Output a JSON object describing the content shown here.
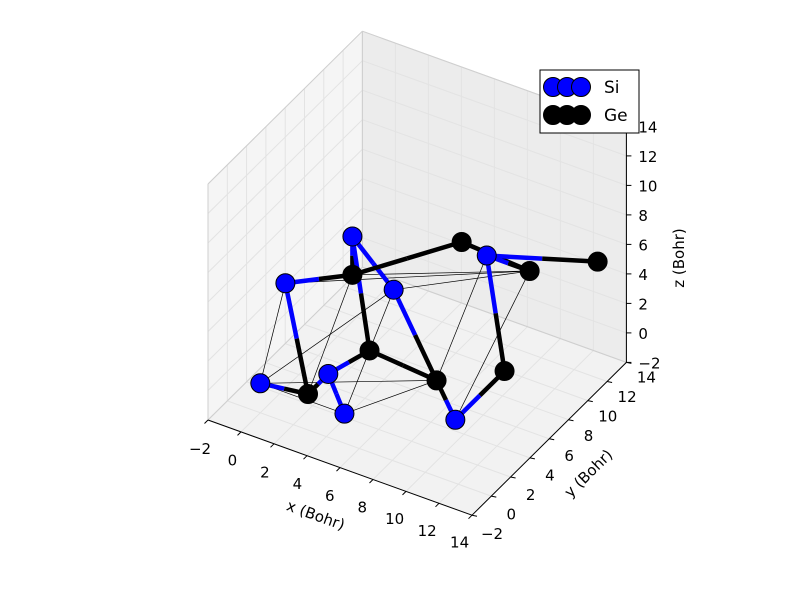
{
  "chart_data": {
    "type": "scatter3d",
    "xlabel": "x (Bohr)",
    "ylabel": "y (Bohr)",
    "zlabel": "z (Bohr)",
    "xlim": [
      -2,
      14
    ],
    "ylim": [
      -2,
      14
    ],
    "zlim": [
      -2,
      14
    ],
    "x_ticks": [
      "−2",
      "0",
      "2",
      "4",
      "6",
      "8",
      "10",
      "12",
      "14"
    ],
    "y_ticks": [
      "−2",
      "0",
      "2",
      "4",
      "6",
      "8",
      "10",
      "12",
      "14"
    ],
    "z_ticks": [
      "−2",
      "0",
      "2",
      "4",
      "6",
      "8",
      "10",
      "12",
      "14"
    ],
    "grid": true,
    "legend_position": "top-right",
    "series": [
      {
        "name": "Si",
        "color": "#0000ff",
        "points": [
          [
            0,
            0,
            0
          ],
          [
            2.6,
            2.6,
            0
          ],
          [
            5.1,
            0,
            0
          ],
          [
            10.3,
            2.6,
            0
          ],
          [
            0,
            2.6,
            5.1
          ],
          [
            2.6,
            5.1,
            7.7
          ],
          [
            5.1,
            5.1,
            5.1
          ],
          [
            7.7,
            10.3,
            5.1
          ]
        ]
      },
      {
        "name": "Ge",
        "color": "#000000",
        "points": [
          [
            2.6,
            0.5,
            0
          ],
          [
            5.1,
            2.6,
            2.6
          ],
          [
            7.7,
            5.1,
            0
          ],
          [
            10.3,
            7.7,
            0
          ],
          [
            2.6,
            5.1,
            5.1
          ],
          [
            7.7,
            7.7,
            7.7
          ],
          [
            10.3,
            10.3,
            5.1
          ],
          [
            12.9,
            12.9,
            5.1
          ]
        ]
      }
    ],
    "bonds": [
      [
        "Si",
        0,
        "Ge",
        0
      ],
      [
        "Ge",
        0,
        "Si",
        1
      ],
      [
        "Si",
        1,
        "Si",
        2
      ],
      [
        "Si",
        1,
        "Ge",
        1
      ],
      [
        "Ge",
        1,
        "Ge",
        2
      ],
      [
        "Ge",
        2,
        "Si",
        3
      ],
      [
        "Si",
        3,
        "Ge",
        3
      ],
      [
        "Si",
        4,
        "Ge",
        0
      ],
      [
        "Si",
        4,
        "Ge",
        4
      ],
      [
        "Ge",
        4,
        "Si",
        5
      ],
      [
        "Si",
        5,
        "Si",
        6
      ],
      [
        "Si",
        5,
        "Ge",
        1
      ],
      [
        "Si",
        6,
        "Ge",
        2
      ],
      [
        "Ge",
        4,
        "Ge",
        5
      ],
      [
        "Ge",
        5,
        "Ge",
        6
      ],
      [
        "Ge",
        6,
        "Si",
        7
      ],
      [
        "Si",
        7,
        "Ge",
        3
      ],
      [
        "Si",
        7,
        "Ge",
        7
      ]
    ],
    "cell_lines": [
      [
        "Si",
        0,
        "Si",
        2
      ],
      [
        "Si",
        2,
        "Ge",
        2
      ],
      [
        "Si",
        0,
        "Si",
        4
      ],
      [
        "Si",
        0,
        "Ge",
        2
      ],
      [
        "Si",
        4,
        "Ge",
        6
      ],
      [
        "Si",
        0,
        "Si",
        6
      ],
      [
        "Ge",
        0,
        "Ge",
        4
      ],
      [
        "Si",
        2,
        "Si",
        6
      ],
      [
        "Ge",
        2,
        "Si",
        7
      ],
      [
        "Si",
        6,
        "Ge",
        6
      ],
      [
        "Ge",
        4,
        "Ge",
        6
      ],
      [
        "Si",
        3,
        "Ge",
        6
      ],
      [
        "Ge",
        1,
        "Si",
        5
      ]
    ]
  }
}
